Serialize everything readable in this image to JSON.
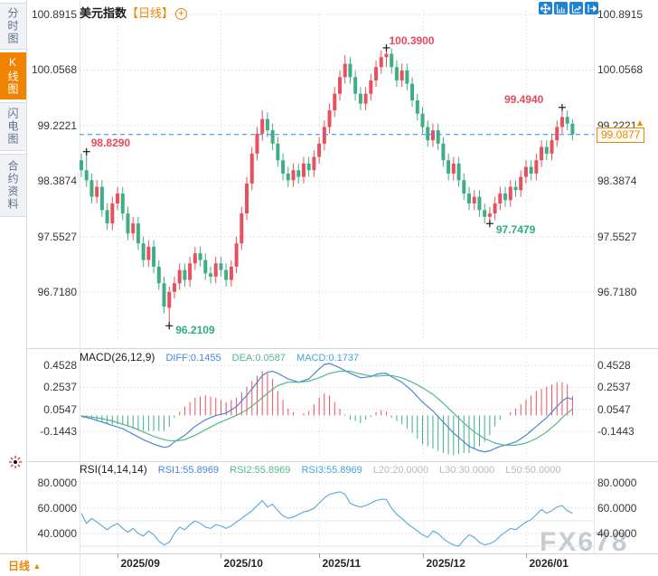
{
  "header": {
    "symbol": "美元指数",
    "period_tag": "【日线】"
  },
  "sidebar": {
    "tabs": [
      {
        "label": "分时图",
        "active": false
      },
      {
        "label": "K线图",
        "active": true
      },
      {
        "label": "闪电图",
        "active": false
      },
      {
        "label": "合约资料",
        "active": false
      }
    ]
  },
  "toolbar": {
    "icons": [
      "pan-crosshair",
      "indicator-window",
      "trend-tool",
      "exit-chart"
    ]
  },
  "price_line": {
    "value": "99.0877",
    "arrow": "▲"
  },
  "bottom": {
    "period_label": "日线",
    "arrow": "▲"
  },
  "watermark": "FX678",
  "colors": {
    "up": "#e8505e",
    "down": "#3fae84",
    "diff_line": "#4a86d8",
    "dea_line": "#53b98a",
    "rsi_line": "#58a8d9",
    "dashed_price": "#2a8af0",
    "accent": "#f08300",
    "grid": "#d9d9d9",
    "icon_blue": "#1f83d3",
    "legend_gray": "#b4b9c1"
  },
  "chart_data": {
    "type": "candlestick",
    "title": "美元指数 日线 (US Dollar Index, Daily)",
    "x_ticks": [
      {
        "day": 7,
        "label": "2025/09"
      },
      {
        "day": 27,
        "label": "2025/10"
      },
      {
        "day": 46,
        "label": "2025/11"
      },
      {
        "day": 66,
        "label": "2025/12"
      },
      {
        "day": 86,
        "label": "2026/01"
      }
    ],
    "panels": [
      {
        "name": "price",
        "type": "candlestick",
        "y_axis": [
          "100.8915",
          "100.0568",
          "99.2221",
          "98.3874",
          "97.5527",
          "96.7180"
        ],
        "last_price": "99.0877",
        "annotations": [
          {
            "index": 1,
            "price": 98.829,
            "text": "98.8290",
            "kind": "high",
            "offset": [
              5,
              -17
            ]
          },
          {
            "index": 59,
            "price": 100.39,
            "text": "100.3900",
            "kind": "high",
            "offset": [
              3,
              -15
            ]
          },
          {
            "index": 93,
            "price": 99.494,
            "text": "99.4940",
            "kind": "high",
            "offset": [
              -64,
              -16
            ]
          },
          {
            "index": 79,
            "price": 97.7479,
            "text": "97.7479",
            "kind": "low",
            "offset": [
              7,
              0
            ]
          },
          {
            "index": 17,
            "price": 96.2109,
            "text": "96.2109",
            "kind": "low",
            "offset": [
              7,
              -2
            ]
          }
        ],
        "ohlc": [
          [
            98.7,
            98.8,
            98.45,
            98.55
          ],
          [
            98.55,
            98.829,
            98.3,
            98.4
          ],
          [
            98.4,
            98.5,
            98.05,
            98.15
          ],
          [
            98.15,
            98.4,
            98.05,
            98.3
          ],
          [
            98.3,
            98.4,
            97.85,
            97.95
          ],
          [
            97.95,
            98.05,
            97.65,
            97.75
          ],
          [
            97.75,
            98.15,
            97.65,
            98.05
          ],
          [
            98.05,
            98.3,
            97.95,
            98.2
          ],
          [
            98.2,
            98.3,
            97.8,
            97.9
          ],
          [
            97.9,
            98.0,
            97.5,
            97.6
          ],
          [
            97.6,
            97.85,
            97.5,
            97.75
          ],
          [
            97.75,
            97.85,
            97.35,
            97.45
          ],
          [
            97.45,
            97.55,
            97.1,
            97.2
          ],
          [
            97.2,
            97.5,
            97.1,
            97.4
          ],
          [
            97.4,
            97.5,
            97.0,
            97.1
          ],
          [
            97.1,
            97.2,
            96.75,
            96.85
          ],
          [
            96.85,
            96.95,
            96.4,
            96.5
          ],
          [
            96.48,
            96.8,
            96.2109,
            96.72
          ],
          [
            96.72,
            96.95,
            96.62,
            96.85
          ],
          [
            96.85,
            97.15,
            96.75,
            97.05
          ],
          [
            97.05,
            97.15,
            96.8,
            96.9
          ],
          [
            96.9,
            97.25,
            96.8,
            97.15
          ],
          [
            97.15,
            97.4,
            97.05,
            97.3
          ],
          [
            97.3,
            97.4,
            97.1,
            97.2
          ],
          [
            97.2,
            97.3,
            96.9,
            97.0
          ],
          [
            97.0,
            97.1,
            96.85,
            96.95
          ],
          [
            96.95,
            97.25,
            96.85,
            97.15
          ],
          [
            97.15,
            97.25,
            96.95,
            97.05
          ],
          [
            97.05,
            97.15,
            96.8,
            96.9
          ],
          [
            96.9,
            97.2,
            96.8,
            97.1
          ],
          [
            97.1,
            97.55,
            97.0,
            97.45
          ],
          [
            97.45,
            98.0,
            97.35,
            97.9
          ],
          [
            97.9,
            98.45,
            97.8,
            98.35
          ],
          [
            98.35,
            98.9,
            98.25,
            98.8
          ],
          [
            98.8,
            99.2,
            98.7,
            99.1
          ],
          [
            99.1,
            99.45,
            99.0,
            99.32
          ],
          [
            99.32,
            99.42,
            99.05,
            99.15
          ],
          [
            99.15,
            99.25,
            98.85,
            98.95
          ],
          [
            98.95,
            99.05,
            98.6,
            98.7
          ],
          [
            98.7,
            98.8,
            98.4,
            98.5
          ],
          [
            98.5,
            98.6,
            98.3,
            98.4
          ],
          [
            98.4,
            98.65,
            98.3,
            98.55
          ],
          [
            98.55,
            98.65,
            98.35,
            98.45
          ],
          [
            98.45,
            98.75,
            98.35,
            98.65
          ],
          [
            98.65,
            98.75,
            98.45,
            98.55
          ],
          [
            98.55,
            98.85,
            98.45,
            98.75
          ],
          [
            98.75,
            99.05,
            98.65,
            98.95
          ],
          [
            98.95,
            99.3,
            98.85,
            99.2
          ],
          [
            99.2,
            99.55,
            99.1,
            99.45
          ],
          [
            99.45,
            99.8,
            99.35,
            99.7
          ],
          [
            99.7,
            100.05,
            99.6,
            99.95
          ],
          [
            99.95,
            100.28,
            99.85,
            100.15
          ],
          [
            100.15,
            100.25,
            99.85,
            99.95
          ],
          [
            99.95,
            100.05,
            99.6,
            99.7
          ],
          [
            99.7,
            99.8,
            99.45,
            99.55
          ],
          [
            99.55,
            99.8,
            99.45,
            99.7
          ],
          [
            99.7,
            100.0,
            99.6,
            99.9
          ],
          [
            99.9,
            100.2,
            99.8,
            100.1
          ],
          [
            100.1,
            100.35,
            100.0,
            100.25
          ],
          [
            100.25,
            100.39,
            100.1,
            100.3
          ],
          [
            100.3,
            100.38,
            100.0,
            100.1
          ],
          [
            100.1,
            100.2,
            99.8,
            99.9
          ],
          [
            99.9,
            100.15,
            99.8,
            100.05
          ],
          [
            100.05,
            100.15,
            99.75,
            99.85
          ],
          [
            99.85,
            99.95,
            99.5,
            99.6
          ],
          [
            99.6,
            99.7,
            99.3,
            99.4
          ],
          [
            99.4,
            99.5,
            99.1,
            99.2
          ],
          [
            99.2,
            99.3,
            98.9,
            99.0
          ],
          [
            99.0,
            99.25,
            98.9,
            99.15
          ],
          [
            99.15,
            99.25,
            98.85,
            98.95
          ],
          [
            98.95,
            99.05,
            98.6,
            98.7
          ],
          [
            98.7,
            98.8,
            98.4,
            98.5
          ],
          [
            98.5,
            98.75,
            98.4,
            98.65
          ],
          [
            98.65,
            98.75,
            98.3,
            98.4
          ],
          [
            98.4,
            98.5,
            98.1,
            98.2
          ],
          [
            98.2,
            98.3,
            97.95,
            98.05
          ],
          [
            98.05,
            98.25,
            97.95,
            98.15
          ],
          [
            98.15,
            98.25,
            97.85,
            97.95
          ],
          [
            97.95,
            98.05,
            97.75,
            97.85
          ],
          [
            97.85,
            98.0,
            97.7479,
            97.9
          ],
          [
            97.9,
            98.15,
            97.8,
            98.05
          ],
          [
            98.05,
            98.3,
            97.95,
            98.2
          ],
          [
            98.2,
            98.3,
            98.0,
            98.1
          ],
          [
            98.1,
            98.4,
            98.0,
            98.3
          ],
          [
            98.3,
            98.4,
            98.15,
            98.25
          ],
          [
            98.25,
            98.55,
            98.15,
            98.45
          ],
          [
            98.45,
            98.7,
            98.35,
            98.6
          ],
          [
            98.6,
            98.7,
            98.4,
            98.5
          ],
          [
            98.5,
            98.8,
            98.4,
            98.7
          ],
          [
            98.7,
            99.0,
            98.6,
            98.9
          ],
          [
            98.9,
            99.0,
            98.7,
            98.8
          ],
          [
            98.8,
            99.1,
            98.7,
            99.0
          ],
          [
            99.0,
            99.3,
            98.9,
            99.2
          ],
          [
            99.2,
            99.494,
            99.1,
            99.35
          ],
          [
            99.35,
            99.45,
            99.15,
            99.25
          ],
          [
            99.25,
            99.32,
            99.0,
            99.0877
          ]
        ]
      },
      {
        "name": "macd",
        "type": "macd",
        "label": "MACD(26,12,9)",
        "legend": [
          {
            "text": "DIFF:0.1455",
            "color": "#4a86d8"
          },
          {
            "text": "DEA:0.0587",
            "color": "#53b98a"
          },
          {
            "text": "MACD:0.1737",
            "color": "#45a5dc"
          }
        ],
        "y_axis": [
          "0.4528",
          "0.2537",
          "0.0547",
          "-0.1443"
        ],
        "diff": [
          -0.01,
          -0.02,
          -0.03,
          -0.045,
          -0.06,
          -0.075,
          -0.09,
          -0.105,
          -0.12,
          -0.145,
          -0.17,
          -0.195,
          -0.22,
          -0.24,
          -0.26,
          -0.275,
          -0.29,
          -0.28,
          -0.24,
          -0.21,
          -0.18,
          -0.14,
          -0.1,
          -0.07,
          -0.04,
          -0.02,
          0.0,
          0.01,
          0.02,
          0.05,
          0.08,
          0.13,
          0.18,
          0.24,
          0.3,
          0.36,
          0.39,
          0.4,
          0.38,
          0.355,
          0.33,
          0.315,
          0.3,
          0.315,
          0.33,
          0.375,
          0.42,
          0.46,
          0.47,
          0.45,
          0.43,
          0.405,
          0.38,
          0.36,
          0.34,
          0.345,
          0.35,
          0.37,
          0.38,
          0.38,
          0.35,
          0.325,
          0.3,
          0.26,
          0.22,
          0.17,
          0.12,
          0.08,
          0.04,
          -0.01,
          -0.06,
          -0.11,
          -0.16,
          -0.2,
          -0.24,
          -0.28,
          -0.3,
          -0.32,
          -0.33,
          -0.32,
          -0.3,
          -0.28,
          -0.27,
          -0.255,
          -0.24,
          -0.21,
          -0.18,
          -0.14,
          -0.1,
          -0.06,
          -0.02,
          0.03,
          0.08,
          0.13,
          0.16,
          0.1455
        ],
        "dea": [
          -0.005,
          -0.01,
          -0.015,
          -0.022,
          -0.03,
          -0.04,
          -0.05,
          -0.065,
          -0.08,
          -0.095,
          -0.11,
          -0.13,
          -0.15,
          -0.17,
          -0.19,
          -0.205,
          -0.22,
          -0.228,
          -0.23,
          -0.227,
          -0.22,
          -0.2,
          -0.18,
          -0.155,
          -0.13,
          -0.105,
          -0.08,
          -0.06,
          -0.04,
          -0.02,
          0.0,
          0.025,
          0.05,
          0.085,
          0.12,
          0.16,
          0.2,
          0.235,
          0.27,
          0.285,
          0.3,
          0.3,
          0.3,
          0.305,
          0.31,
          0.325,
          0.34,
          0.36,
          0.38,
          0.39,
          0.4,
          0.4,
          0.4,
          0.385,
          0.375,
          0.365,
          0.358,
          0.355,
          0.357,
          0.362,
          0.36,
          0.35,
          0.34,
          0.32,
          0.3,
          0.275,
          0.25,
          0.22,
          0.19,
          0.15,
          0.11,
          0.065,
          0.02,
          -0.025,
          -0.07,
          -0.11,
          -0.15,
          -0.18,
          -0.21,
          -0.23,
          -0.25,
          -0.26,
          -0.27,
          -0.27,
          -0.27,
          -0.26,
          -0.25,
          -0.23,
          -0.21,
          -0.18,
          -0.15,
          -0.11,
          -0.07,
          -0.02,
          0.02,
          0.0587
        ]
      },
      {
        "name": "rsi",
        "type": "line",
        "label": "RSI(14,14,14)",
        "legend": [
          {
            "text": "RSI1:55.8969",
            "color": "#4a86d8"
          },
          {
            "text": "RSI2:55.8969",
            "color": "#53b98a"
          },
          {
            "text": "RSI3:55.8969",
            "color": "#45a5dc"
          },
          {
            "text": "L20:20.0000",
            "color": "#b4b9c1"
          },
          {
            "text": "L30:30.0000",
            "color": "#b4b9c1"
          },
          {
            "text": "L50:50.0000",
            "color": "#b4b9c1"
          }
        ],
        "y_axis": [
          "80.0000",
          "60.0000",
          "40.0000"
        ],
        "ref_lines": [
          50,
          30
        ],
        "rsi": [
          56,
          48,
          52,
          49,
          46,
          43,
          46,
          48,
          44,
          41,
          44,
          40,
          38,
          42,
          39,
          34,
          31,
          33,
          40,
          45,
          43,
          47,
          50,
          48,
          45,
          44,
          47,
          46,
          44,
          46,
          49,
          52,
          55,
          58,
          62,
          66,
          61,
          63,
          58,
          54,
          52,
          53,
          55,
          57,
          58,
          60,
          64,
          68,
          71,
          72,
          73,
          71,
          64,
          62,
          61,
          62,
          64,
          66,
          67,
          67,
          60,
          55,
          52,
          48,
          45,
          42,
          39,
          37,
          42,
          40,
          36,
          33,
          31,
          30,
          35,
          39,
          37,
          33,
          31,
          32,
          34,
          38,
          41,
          44,
          43,
          46,
          49,
          51,
          55,
          59,
          56,
          58,
          61,
          62,
          58,
          55.8969
        ]
      }
    ]
  }
}
